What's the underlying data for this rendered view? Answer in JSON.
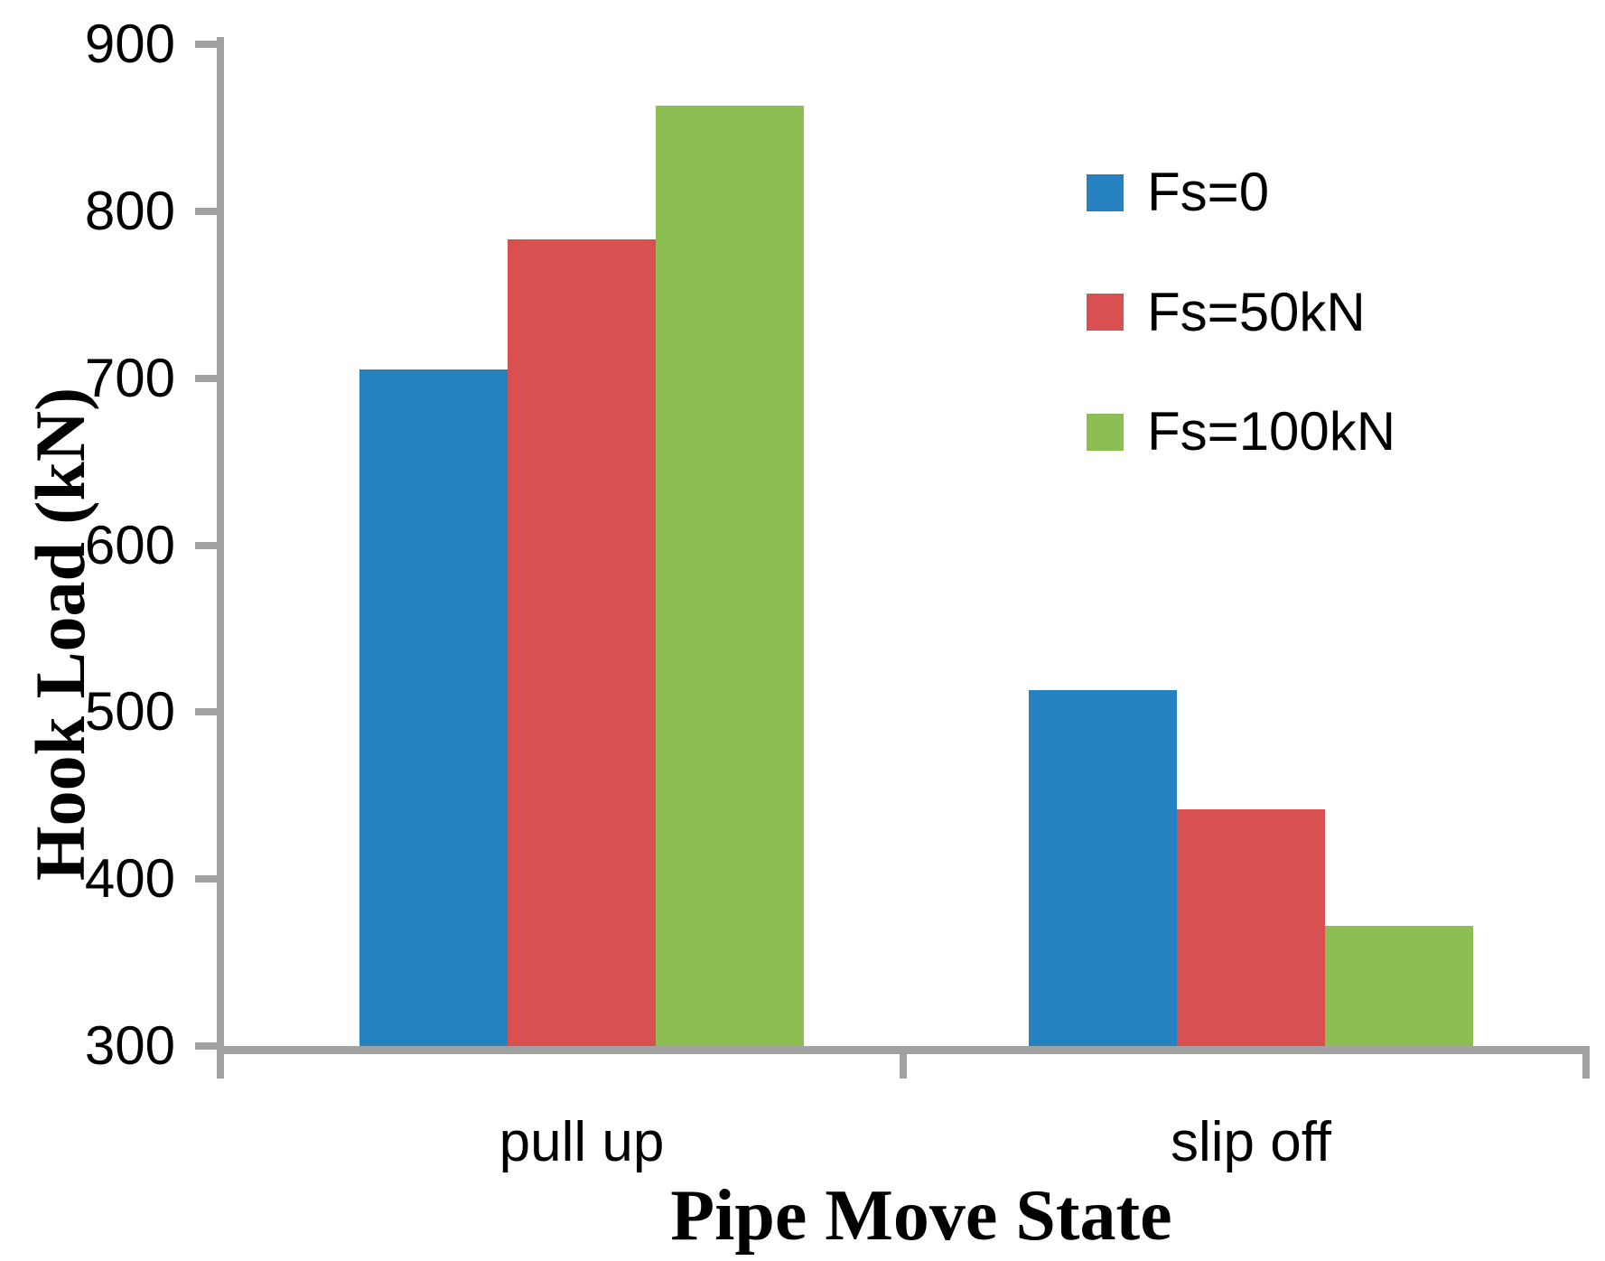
{
  "chart_data": {
    "type": "bar",
    "title": "",
    "categories": [
      "pull up",
      "slip off"
    ],
    "series": [
      {
        "name": "Fs=0",
        "color": "#2581C0",
        "values": [
          705,
          513
        ]
      },
      {
        "name": "Fs=50kN",
        "color": "#D95050",
        "values": [
          783,
          442
        ]
      },
      {
        "name": "Fs=100kN",
        "color": "#8CBE53",
        "values": [
          863,
          372
        ]
      }
    ],
    "xlabel": "Pipe Move State",
    "ylabel": "Hook Load (kN)",
    "ylim": [
      300,
      900
    ],
    "yticks": [
      300,
      400,
      500,
      600,
      700,
      800,
      900
    ],
    "grid": false,
    "legend_position": "upper right",
    "axis_color": "#A1A1A1"
  }
}
